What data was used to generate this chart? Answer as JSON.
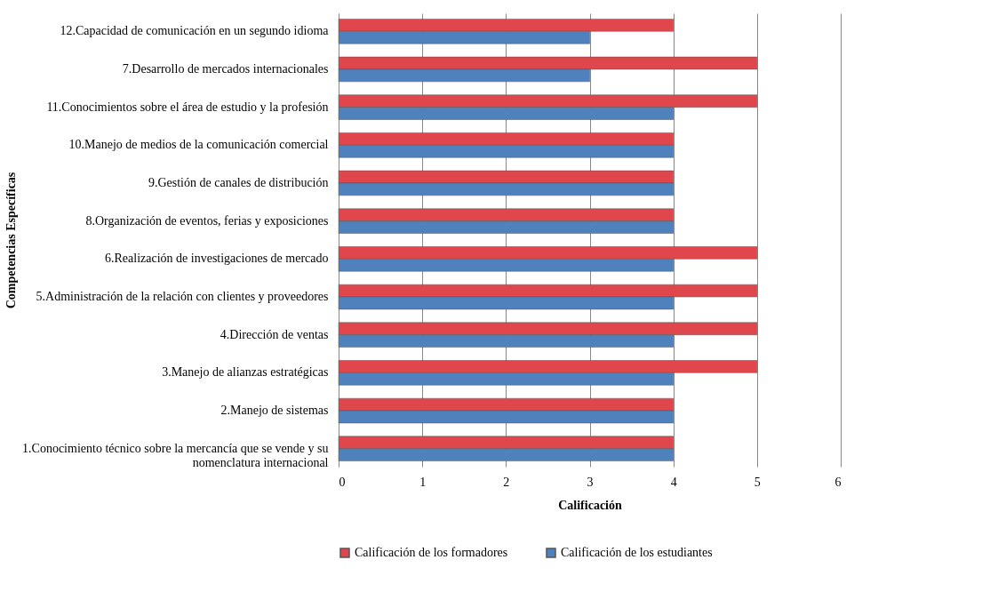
{
  "chart_data": {
    "type": "bar",
    "orientation": "horizontal",
    "xlabel": "Calificación",
    "ylabel": "Competencias Específicas",
    "categories": [
      "12.Capacidad de comunicación en un segundo idioma",
      "7.Desarrollo de mercados internacionales",
      "11.Conocimientos sobre el área de estudio y la profesión",
      "10.Manejo de medios de la comunicación comercial",
      "9.Gestión de canales de distribución",
      "8.Organización de eventos, ferias y exposiciones",
      "6.Realización de investigaciones de mercado",
      "5.Administración de la relación con clientes y proveedores",
      "4.Dirección de ventas",
      "3.Manejo de alianzas estratégicas",
      "2.Manejo de sistemas",
      "1.Conocimiento técnico sobre la mercancía que se vende y su nomenclatura internacional"
    ],
    "series": [
      {
        "name": "Calificación de los formadores",
        "color": "#e0474c",
        "values": [
          4,
          5,
          5,
          4,
          4,
          4,
          5,
          5,
          5,
          5,
          4,
          4
        ]
      },
      {
        "name": "Calificación de los estudiantes",
        "color": "#4f81bd",
        "values": [
          3,
          3,
          4,
          4,
          4,
          4,
          4,
          4,
          4,
          4,
          4,
          4
        ]
      }
    ],
    "xlim": [
      0,
      6
    ],
    "xticks": [
      0,
      1,
      2,
      3,
      4,
      5,
      6
    ],
    "grid": "x",
    "legend": "bottom"
  }
}
